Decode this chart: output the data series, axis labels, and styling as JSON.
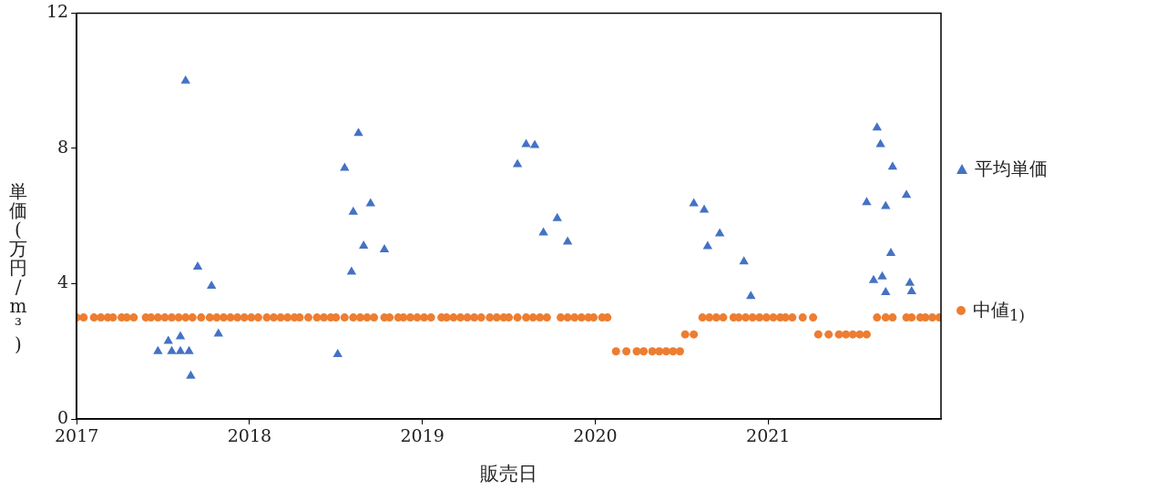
{
  "chart_data": {
    "type": "scatter",
    "xlabel": "販売日",
    "ylabel": "単価(万円/m³)",
    "xlim": [
      2017,
      2022
    ],
    "xticks": [
      2017,
      2018,
      2019,
      2020,
      2021
    ],
    "ylim": [
      0,
      12
    ],
    "yticks": [
      0,
      4,
      8,
      12
    ],
    "grid": false,
    "legend": "right",
    "series": [
      {
        "name": "平均単価",
        "color": "#4472c4",
        "marker": "triangle",
        "x": [
          2017.47,
          2017.53,
          2017.55,
          2017.6,
          2017.6,
          2017.63,
          2017.65,
          2017.66,
          2017.7,
          2017.78,
          2017.82,
          2018.51,
          2018.55,
          2018.59,
          2018.6,
          2018.63,
          2018.66,
          2018.7,
          2018.78,
          2019.55,
          2019.6,
          2019.65,
          2019.7,
          2019.78,
          2019.84,
          2020.57,
          2020.63,
          2020.65,
          2020.68,
          2020.72,
          2020.86,
          2020.9,
          2021.57,
          2021.61,
          2021.63,
          2021.65,
          2021.66,
          2021.68,
          2021.68,
          2021.71,
          2021.72,
          2021.8,
          2021.82,
          2021.83
        ],
        "values": [
          2.0,
          2.3,
          2.0,
          2.44,
          2.0,
          10.0,
          2.0,
          1.27,
          4.5,
          3.93,
          2.52,
          1.91,
          7.42,
          4.35,
          6.12,
          8.45,
          5.12,
          6.37,
          5.01,
          7.53,
          8.12,
          8.09,
          5.51,
          5.93,
          5.24,
          6.37,
          6.18,
          5.1,
          null,
          5.48,
          4.65,
          3.63,
          6.4,
          4.1,
          8.61,
          8.12,
          4.21,
          6.29,
          3.74,
          4.9,
          7.45,
          6.62,
          4.02,
          3.77
        ]
      },
      {
        "name": "中値$_{1)}$",
        "color": "#ed7d31",
        "marker": "circle",
        "x": [
          2017.0,
          2017.04,
          2017.1,
          2017.14,
          2017.18,
          2017.21,
          2017.26,
          2017.29,
          2017.33,
          2017.4,
          2017.43,
          2017.47,
          2017.51,
          2017.55,
          2017.59,
          2017.63,
          2017.67,
          2017.72,
          2017.77,
          2017.81,
          2017.85,
          2017.89,
          2017.93,
          2017.97,
          2018.01,
          2018.05,
          2018.1,
          2018.14,
          2018.18,
          2018.22,
          2018.26,
          2018.29,
          2018.34,
          2018.39,
          2018.43,
          2018.47,
          2018.5,
          2018.55,
          2018.6,
          2018.64,
          2018.68,
          2018.72,
          2018.78,
          2018.81,
          2018.86,
          2018.89,
          2018.93,
          2018.97,
          2019.01,
          2019.05,
          2019.11,
          2019.14,
          2019.18,
          2019.22,
          2019.26,
          2019.3,
          2019.34,
          2019.39,
          2019.43,
          2019.47,
          2019.5,
          2019.55,
          2019.6,
          2019.64,
          2019.68,
          2019.72,
          2019.8,
          2019.84,
          2019.88,
          2019.92,
          2019.96,
          2019.99,
          2020.04,
          2020.07,
          2020.12,
          2020.18,
          2020.24,
          2020.28,
          2020.33,
          2020.37,
          2020.41,
          2020.45,
          2020.49,
          2020.52,
          2020.57,
          2020.62,
          2020.66,
          2020.7,
          2020.74,
          2020.8,
          2020.83,
          2020.87,
          2020.91,
          2020.95,
          2020.99,
          2021.03,
          2021.07,
          2021.1,
          2021.14,
          2021.2,
          2021.26,
          2021.29,
          2021.35,
          2021.41,
          2021.45,
          2021.49,
          2021.53,
          2021.57,
          2021.63,
          2021.68,
          2021.72,
          2021.8,
          2021.83,
          2021.88,
          2021.91,
          2021.95,
          2021.99
        ],
        "values": [
          3,
          3,
          3,
          3,
          3,
          3,
          3,
          3,
          3,
          3,
          3,
          3,
          3,
          3,
          3,
          3,
          3,
          3,
          3,
          3,
          3,
          3,
          3,
          3,
          3,
          3,
          3,
          3,
          3,
          3,
          3,
          3,
          3,
          3,
          3,
          3,
          3,
          3,
          3,
          3,
          3,
          3,
          3,
          3,
          3,
          3,
          3,
          3,
          3,
          3,
          3,
          3,
          3,
          3,
          3,
          3,
          3,
          3,
          3,
          3,
          3,
          3,
          3,
          3,
          3,
          3,
          3,
          3,
          3,
          3,
          3,
          3,
          3,
          3,
          2,
          2,
          2,
          2,
          2,
          2,
          2,
          2,
          2,
          2.5,
          2.5,
          3,
          3,
          3,
          3,
          3,
          3,
          3,
          3,
          3,
          3,
          3,
          3,
          3,
          3,
          3,
          3,
          2.5,
          2.5,
          2.5,
          2.5,
          2.5,
          2.5,
          2.5,
          3,
          3,
          3,
          3,
          3,
          3,
          3,
          3,
          3
        ]
      }
    ]
  }
}
